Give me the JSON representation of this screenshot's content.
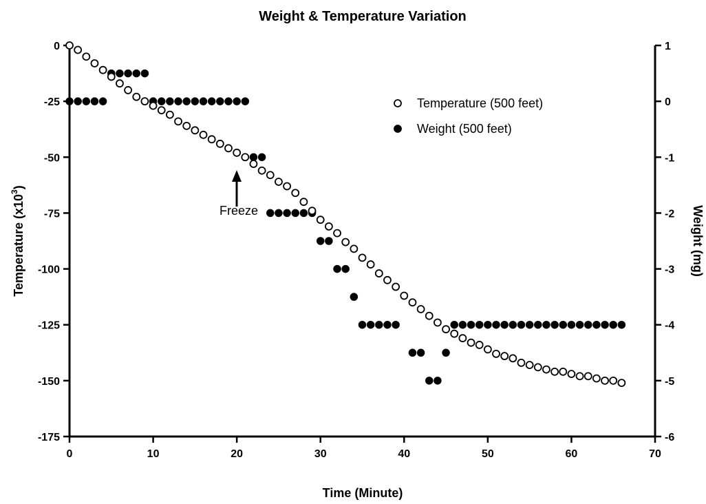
{
  "chart_data": {
    "type": "scatter",
    "title": "Weight & Temperature Variation",
    "xlabel": "Time (Minute)",
    "ylabel_left": "Temperature (x10",
    "ylabel_left_sup": "3",
    "ylabel_left_close": ")",
    "ylabel_right": "Weight (mg)",
    "xlim": [
      0,
      70
    ],
    "ylim_left": [
      -175,
      0
    ],
    "ylim_right": [
      -6,
      1
    ],
    "x_ticks": [
      0,
      10,
      20,
      30,
      40,
      50,
      60,
      70
    ],
    "x_tick_labels": [
      "0",
      "10",
      "20",
      "30",
      "40",
      "50",
      "60",
      "70"
    ],
    "y_left_ticks": [
      0,
      -25,
      -50,
      -75,
      -100,
      -125,
      -150,
      -175
    ],
    "y_left_tick_labels": [
      "0",
      "-25",
      "-50",
      "-75",
      "-100",
      "-125",
      "-150",
      "-175"
    ],
    "y_right_ticks": [
      1,
      0,
      -1,
      -2,
      -3,
      -4,
      -5,
      -6
    ],
    "y_right_tick_labels": [
      "1",
      "0",
      "-1",
      "-2",
      "-3",
      "-4",
      "-5",
      "-6"
    ],
    "grid": false,
    "legend_position": "top-right",
    "annotation": {
      "text": "Freeze",
      "x": 20,
      "y": -60
    },
    "series": [
      {
        "name": "Temperature (500 feet)",
        "axis": "left",
        "marker": "open-circle",
        "x": [
          0,
          1,
          2,
          3,
          4,
          5,
          6,
          7,
          8,
          9,
          10,
          11,
          12,
          13,
          14,
          15,
          16,
          17,
          18,
          19,
          20,
          21,
          22,
          23,
          24,
          25,
          26,
          27,
          28,
          29,
          30,
          31,
          32,
          33,
          34,
          35,
          36,
          37,
          38,
          39,
          40,
          41,
          42,
          43,
          44,
          45,
          46,
          47,
          48,
          49,
          50,
          51,
          52,
          53,
          54,
          55,
          56,
          57,
          58,
          59,
          60,
          61,
          62,
          63,
          64,
          65,
          66
        ],
        "y": [
          0,
          -2,
          -5,
          -8,
          -11,
          -14,
          -17,
          -20,
          -23,
          -25,
          -27,
          -29,
          -31,
          -34,
          -36,
          -38,
          -40,
          -42,
          -44,
          -46,
          -48,
          -50,
          -53,
          -56,
          -58,
          -61,
          -63,
          -66,
          -70,
          -74,
          -78,
          -81,
          -84,
          -88,
          -91,
          -95,
          -98,
          -102,
          -105,
          -108,
          -112,
          -115,
          -118,
          -121,
          -124,
          -127,
          -129,
          -131,
          -133,
          -134,
          -136,
          -138,
          -139,
          -140,
          -142,
          -143,
          -144,
          -145,
          -146,
          -146,
          -147,
          -148,
          -148,
          -149,
          -150,
          -150,
          -151
        ]
      },
      {
        "name": "Weight (500 feet)",
        "axis": "right",
        "marker": "filled-circle",
        "x": [
          0,
          1,
          2,
          3,
          4,
          5,
          6,
          7,
          8,
          9,
          10,
          11,
          12,
          13,
          14,
          15,
          16,
          17,
          18,
          19,
          20,
          21,
          22,
          23,
          24,
          25,
          26,
          27,
          28,
          29,
          30,
          31,
          32,
          33,
          34,
          35,
          36,
          37,
          38,
          39,
          41,
          42,
          43,
          44,
          45,
          46,
          47,
          48,
          49,
          50,
          51,
          52,
          53,
          54,
          55,
          56,
          57,
          58,
          59,
          60,
          61,
          62,
          63,
          64,
          65,
          66
        ],
        "y": [
          0,
          0,
          0,
          0,
          0,
          0.5,
          0.5,
          0.5,
          0.5,
          0.5,
          0,
          0,
          0,
          0,
          0,
          0,
          0,
          0,
          0,
          0,
          0,
          0,
          -1,
          -1,
          -2,
          -2,
          -2,
          -2,
          -2,
          -2,
          -2.5,
          -2.5,
          -3,
          -3,
          -3.5,
          -4,
          -4,
          -4,
          -4,
          -4,
          -4.5,
          -4.5,
          -5,
          -5,
          -4.5,
          -4,
          -4,
          -4,
          -4,
          -4,
          -4,
          -4,
          -4,
          -4,
          -4,
          -4,
          -4,
          -4,
          -4,
          -4,
          -4,
          -4,
          -4,
          -4,
          -4,
          -4
        ]
      }
    ]
  }
}
